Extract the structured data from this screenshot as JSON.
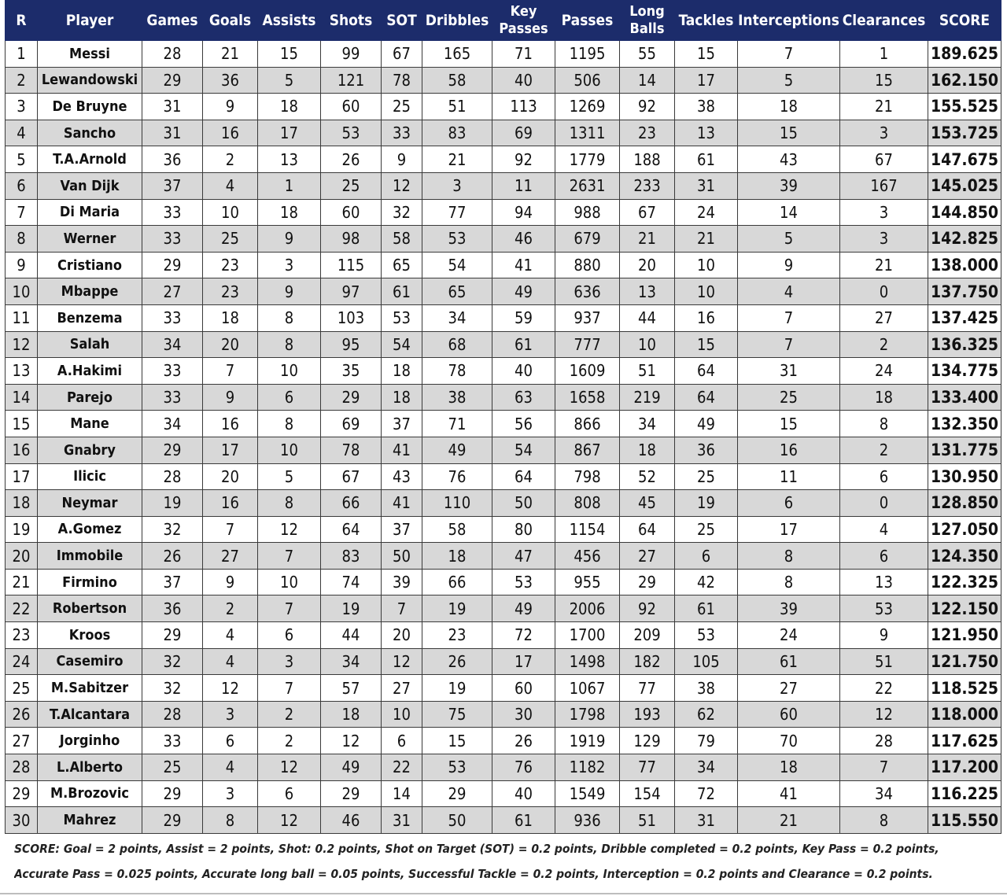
{
  "table": {
    "headers": [
      "R",
      "Player",
      "Games",
      "Goals",
      "Assists",
      "Shots",
      "SOT",
      "Dribbles",
      "Key Passes",
      "Passes",
      "Long Balls",
      "Tackles",
      "Interceptions",
      "Clearances",
      "SCORE"
    ],
    "rows": [
      [
        "1",
        "Messi",
        "28",
        "21",
        "15",
        "99",
        "67",
        "165",
        "71",
        "1195",
        "55",
        "15",
        "7",
        "1",
        "189.625"
      ],
      [
        "2",
        "Lewandowski",
        "29",
        "36",
        "5",
        "121",
        "78",
        "58",
        "40",
        "506",
        "14",
        "17",
        "5",
        "15",
        "162.150"
      ],
      [
        "3",
        "De Bruyne",
        "31",
        "9",
        "18",
        "60",
        "25",
        "51",
        "113",
        "1269",
        "92",
        "38",
        "18",
        "21",
        "155.525"
      ],
      [
        "4",
        "Sancho",
        "31",
        "16",
        "17",
        "53",
        "33",
        "83",
        "69",
        "1311",
        "23",
        "13",
        "15",
        "3",
        "153.725"
      ],
      [
        "5",
        "T.A.Arnold",
        "36",
        "2",
        "13",
        "26",
        "9",
        "21",
        "92",
        "1779",
        "188",
        "61",
        "43",
        "67",
        "147.675"
      ],
      [
        "6",
        "Van Dijk",
        "37",
        "4",
        "1",
        "25",
        "12",
        "3",
        "11",
        "2631",
        "233",
        "31",
        "39",
        "167",
        "145.025"
      ],
      [
        "7",
        "Di Maria",
        "33",
        "10",
        "18",
        "60",
        "32",
        "77",
        "94",
        "988",
        "67",
        "24",
        "14",
        "3",
        "144.850"
      ],
      [
        "8",
        "Werner",
        "33",
        "25",
        "9",
        "98",
        "58",
        "53",
        "46",
        "679",
        "21",
        "21",
        "5",
        "3",
        "142.825"
      ],
      [
        "9",
        "Cristiano",
        "29",
        "23",
        "3",
        "115",
        "65",
        "54",
        "41",
        "880",
        "20",
        "10",
        "9",
        "21",
        "138.000"
      ],
      [
        "10",
        "Mbappe",
        "27",
        "23",
        "9",
        "97",
        "61",
        "65",
        "49",
        "636",
        "13",
        "10",
        "4",
        "0",
        "137.750"
      ],
      [
        "11",
        "Benzema",
        "33",
        "18",
        "8",
        "103",
        "53",
        "34",
        "59",
        "937",
        "44",
        "16",
        "7",
        "27",
        "137.425"
      ],
      [
        "12",
        "Salah",
        "34",
        "20",
        "8",
        "95",
        "54",
        "68",
        "61",
        "777",
        "10",
        "15",
        "7",
        "2",
        "136.325"
      ],
      [
        "13",
        "A.Hakimi",
        "33",
        "7",
        "10",
        "35",
        "18",
        "78",
        "40",
        "1609",
        "51",
        "64",
        "31",
        "24",
        "134.775"
      ],
      [
        "14",
        "Parejo",
        "33",
        "9",
        "6",
        "29",
        "18",
        "38",
        "63",
        "1658",
        "219",
        "64",
        "25",
        "18",
        "133.400"
      ],
      [
        "15",
        "Mane",
        "34",
        "16",
        "8",
        "69",
        "37",
        "71",
        "56",
        "866",
        "34",
        "49",
        "15",
        "8",
        "132.350"
      ],
      [
        "16",
        "Gnabry",
        "29",
        "17",
        "10",
        "78",
        "41",
        "49",
        "54",
        "867",
        "18",
        "36",
        "16",
        "2",
        "131.775"
      ],
      [
        "17",
        "Ilicic",
        "28",
        "20",
        "5",
        "67",
        "43",
        "76",
        "64",
        "798",
        "52",
        "25",
        "11",
        "6",
        "130.950"
      ],
      [
        "18",
        "Neymar",
        "19",
        "16",
        "8",
        "66",
        "41",
        "110",
        "50",
        "808",
        "45",
        "19",
        "6",
        "0",
        "128.850"
      ],
      [
        "19",
        "A.Gomez",
        "32",
        "7",
        "12",
        "64",
        "37",
        "58",
        "80",
        "1154",
        "64",
        "25",
        "17",
        "4",
        "127.050"
      ],
      [
        "20",
        "Immobile",
        "26",
        "27",
        "7",
        "83",
        "50",
        "18",
        "47",
        "456",
        "27",
        "6",
        "8",
        "6",
        "124.350"
      ],
      [
        "21",
        "Firmino",
        "37",
        "9",
        "10",
        "74",
        "39",
        "66",
        "53",
        "955",
        "29",
        "42",
        "8",
        "13",
        "122.325"
      ],
      [
        "22",
        "Robertson",
        "36",
        "2",
        "7",
        "19",
        "7",
        "19",
        "49",
        "2006",
        "92",
        "61",
        "39",
        "53",
        "122.150"
      ],
      [
        "23",
        "Kroos",
        "29",
        "4",
        "6",
        "44",
        "20",
        "23",
        "72",
        "1700",
        "209",
        "53",
        "24",
        "9",
        "121.950"
      ],
      [
        "24",
        "Casemiro",
        "32",
        "4",
        "3",
        "34",
        "12",
        "26",
        "17",
        "1498",
        "182",
        "105",
        "61",
        "51",
        "121.750"
      ],
      [
        "25",
        "M.Sabitzer",
        "32",
        "12",
        "7",
        "57",
        "27",
        "19",
        "60",
        "1067",
        "77",
        "38",
        "27",
        "22",
        "118.525"
      ],
      [
        "26",
        "T.Alcantara",
        "28",
        "3",
        "2",
        "18",
        "10",
        "75",
        "30",
        "1798",
        "193",
        "62",
        "60",
        "12",
        "118.000"
      ],
      [
        "27",
        "Jorginho",
        "33",
        "6",
        "2",
        "12",
        "6",
        "15",
        "26",
        "1919",
        "129",
        "79",
        "70",
        "28",
        "117.625"
      ],
      [
        "28",
        "L.Alberto",
        "25",
        "4",
        "12",
        "49",
        "22",
        "53",
        "76",
        "1182",
        "77",
        "34",
        "18",
        "7",
        "117.200"
      ],
      [
        "29",
        "M.Brozovic",
        "29",
        "3",
        "6",
        "29",
        "14",
        "29",
        "40",
        "1549",
        "154",
        "72",
        "41",
        "34",
        "116.225"
      ],
      [
        "30",
        "Mahrez",
        "29",
        "8",
        "12",
        "46",
        "31",
        "50",
        "61",
        "936",
        "51",
        "31",
        "21",
        "8",
        "115.550"
      ]
    ]
  },
  "legend": {
    "line1": "SCORE: Goal = 2 points, Assist = 2 points,  Shot: 0.2 points, Shot on Target (SOT) = 0.2 points, Dribble completed = 0.2 points, Key Pass = 0.2 points,",
    "line2": "Accurate Pass = 0.025 points, Accurate long ball = 0.05 points, Successful Tackle = 0.2 points, Interception = 0.2 points and Clearance = 0.2 points."
  }
}
